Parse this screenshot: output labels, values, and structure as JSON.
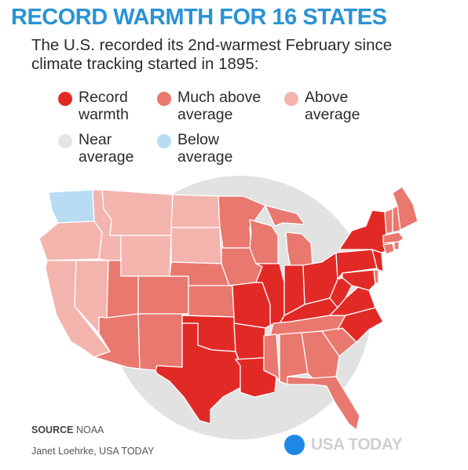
{
  "title": "RECORD WARMTH FOR 16 STATES",
  "subtitle": "The U.S. recorded its 2nd-warmest February since climate tracking started in 1895:",
  "colors": {
    "title": "#2a93d5",
    "record": "#e12a26",
    "much_above": "#e9786f",
    "above": "#f3b4ae",
    "near": "#e4e4e4",
    "below": "#b7dcf4",
    "circle": "#e2e2e2"
  },
  "legend": [
    {
      "key": "record",
      "line1": "Record",
      "line2": "warmth"
    },
    {
      "key": "much_above",
      "line1": "Much above",
      "line2": "average"
    },
    {
      "key": "above",
      "line1": "Above",
      "line2": "average"
    },
    {
      "key": "near",
      "line1": "Near",
      "line2": "average"
    },
    {
      "key": "below",
      "line1": "Below",
      "line2": "average"
    }
  ],
  "source_label": "SOURCE",
  "source_value": "NOAA",
  "credit": "Janet Loehrke, USA TODAY",
  "brand": "USA TODAY",
  "states": {
    "record": [
      "Texas",
      "Oklahoma",
      "Louisiana",
      "Arkansas",
      "Missouri",
      "Illinois",
      "Indiana",
      "Ohio",
      "Kentucky",
      "West Virginia",
      "Virginia",
      "North Carolina",
      "Pennsylvania",
      "New York",
      "New Jersey",
      "Maryland"
    ],
    "much_above": [
      "Arizona",
      "Utah",
      "Colorado",
      "New Mexico",
      "Kansas",
      "Nebraska",
      "Iowa",
      "Minnesota",
      "Wisconsin",
      "Michigan",
      "Tennessee",
      "Mississippi",
      "Alabama",
      "Georgia",
      "South Carolina",
      "Florida",
      "Maine",
      "New Hampshire",
      "Vermont",
      "Massachusetts",
      "Connecticut",
      "Rhode Island",
      "Delaware"
    ],
    "above": [
      "California",
      "Nevada",
      "Idaho",
      "Montana",
      "Wyoming",
      "North Dakota",
      "South Dakota",
      "Oregon"
    ],
    "near": [],
    "below": [
      "Washington"
    ]
  }
}
